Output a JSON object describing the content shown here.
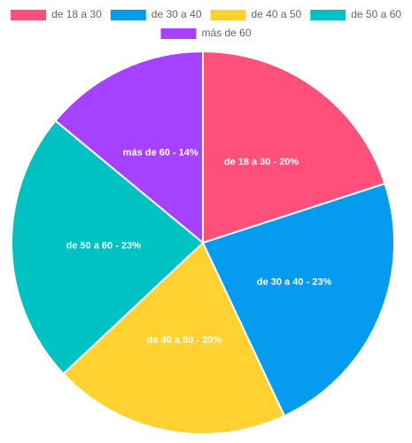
{
  "chart_data": {
    "type": "pie",
    "categories": [
      "de 18 a 30",
      "de 30 a 40",
      "de 40 a 50",
      "de 50 a 60",
      "más de 60"
    ],
    "values": [
      20,
      23,
      20,
      23,
      14
    ],
    "value_labels": [
      "de 18 a 30 - 20%",
      "de 30 a 40 - 23%",
      "de 40 a 50 - 20%",
      "de 50 a 60 - 23%",
      "más de 60 - 14%"
    ],
    "colors": [
      "#ff4f7b",
      "#059bef",
      "#ffd231",
      "#00c2c2",
      "#a642ff"
    ],
    "legend": "top"
  }
}
